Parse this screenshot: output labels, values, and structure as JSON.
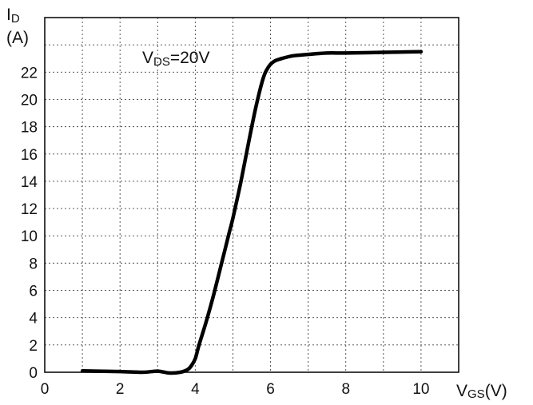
{
  "chart_data": {
    "type": "line",
    "y_axis": {
      "main": "I",
      "sub": "D",
      "unit": "(A)"
    },
    "x_axis": {
      "main": "V",
      "sub": "GS",
      "unit": "(V)"
    },
    "annotation": {
      "main": "V",
      "sub": "DS",
      "rest": "=20V"
    },
    "xlim": [
      0,
      11
    ],
    "ylim": [
      0,
      26
    ],
    "x_ticks": [
      0,
      2,
      4,
      6,
      8,
      10
    ],
    "y_ticks": [
      0,
      2,
      4,
      6,
      8,
      10,
      12,
      14,
      16,
      18,
      20,
      22
    ],
    "x_grid_step": 1,
    "y_grid_step": 2,
    "grid": true,
    "series": [
      {
        "x": [
          1.0,
          2.0,
          2.6,
          3.0,
          3.3,
          3.6,
          3.8,
          3.9,
          4.0,
          4.1,
          4.3,
          4.5,
          4.7,
          4.9,
          5.0,
          5.2,
          5.4,
          5.6,
          5.8,
          5.95,
          6.1,
          6.3,
          6.6,
          7.0,
          7.5,
          8.0,
          9.0,
          10.0
        ],
        "y": [
          0.1,
          0.05,
          0.0,
          0.08,
          -0.05,
          0.0,
          0.2,
          0.5,
          1.0,
          2.0,
          3.8,
          5.8,
          8.0,
          10.2,
          11.3,
          13.8,
          16.6,
          19.3,
          21.5,
          22.4,
          22.8,
          23.0,
          23.2,
          23.3,
          23.4,
          23.4,
          23.45,
          23.5
        ]
      }
    ]
  }
}
